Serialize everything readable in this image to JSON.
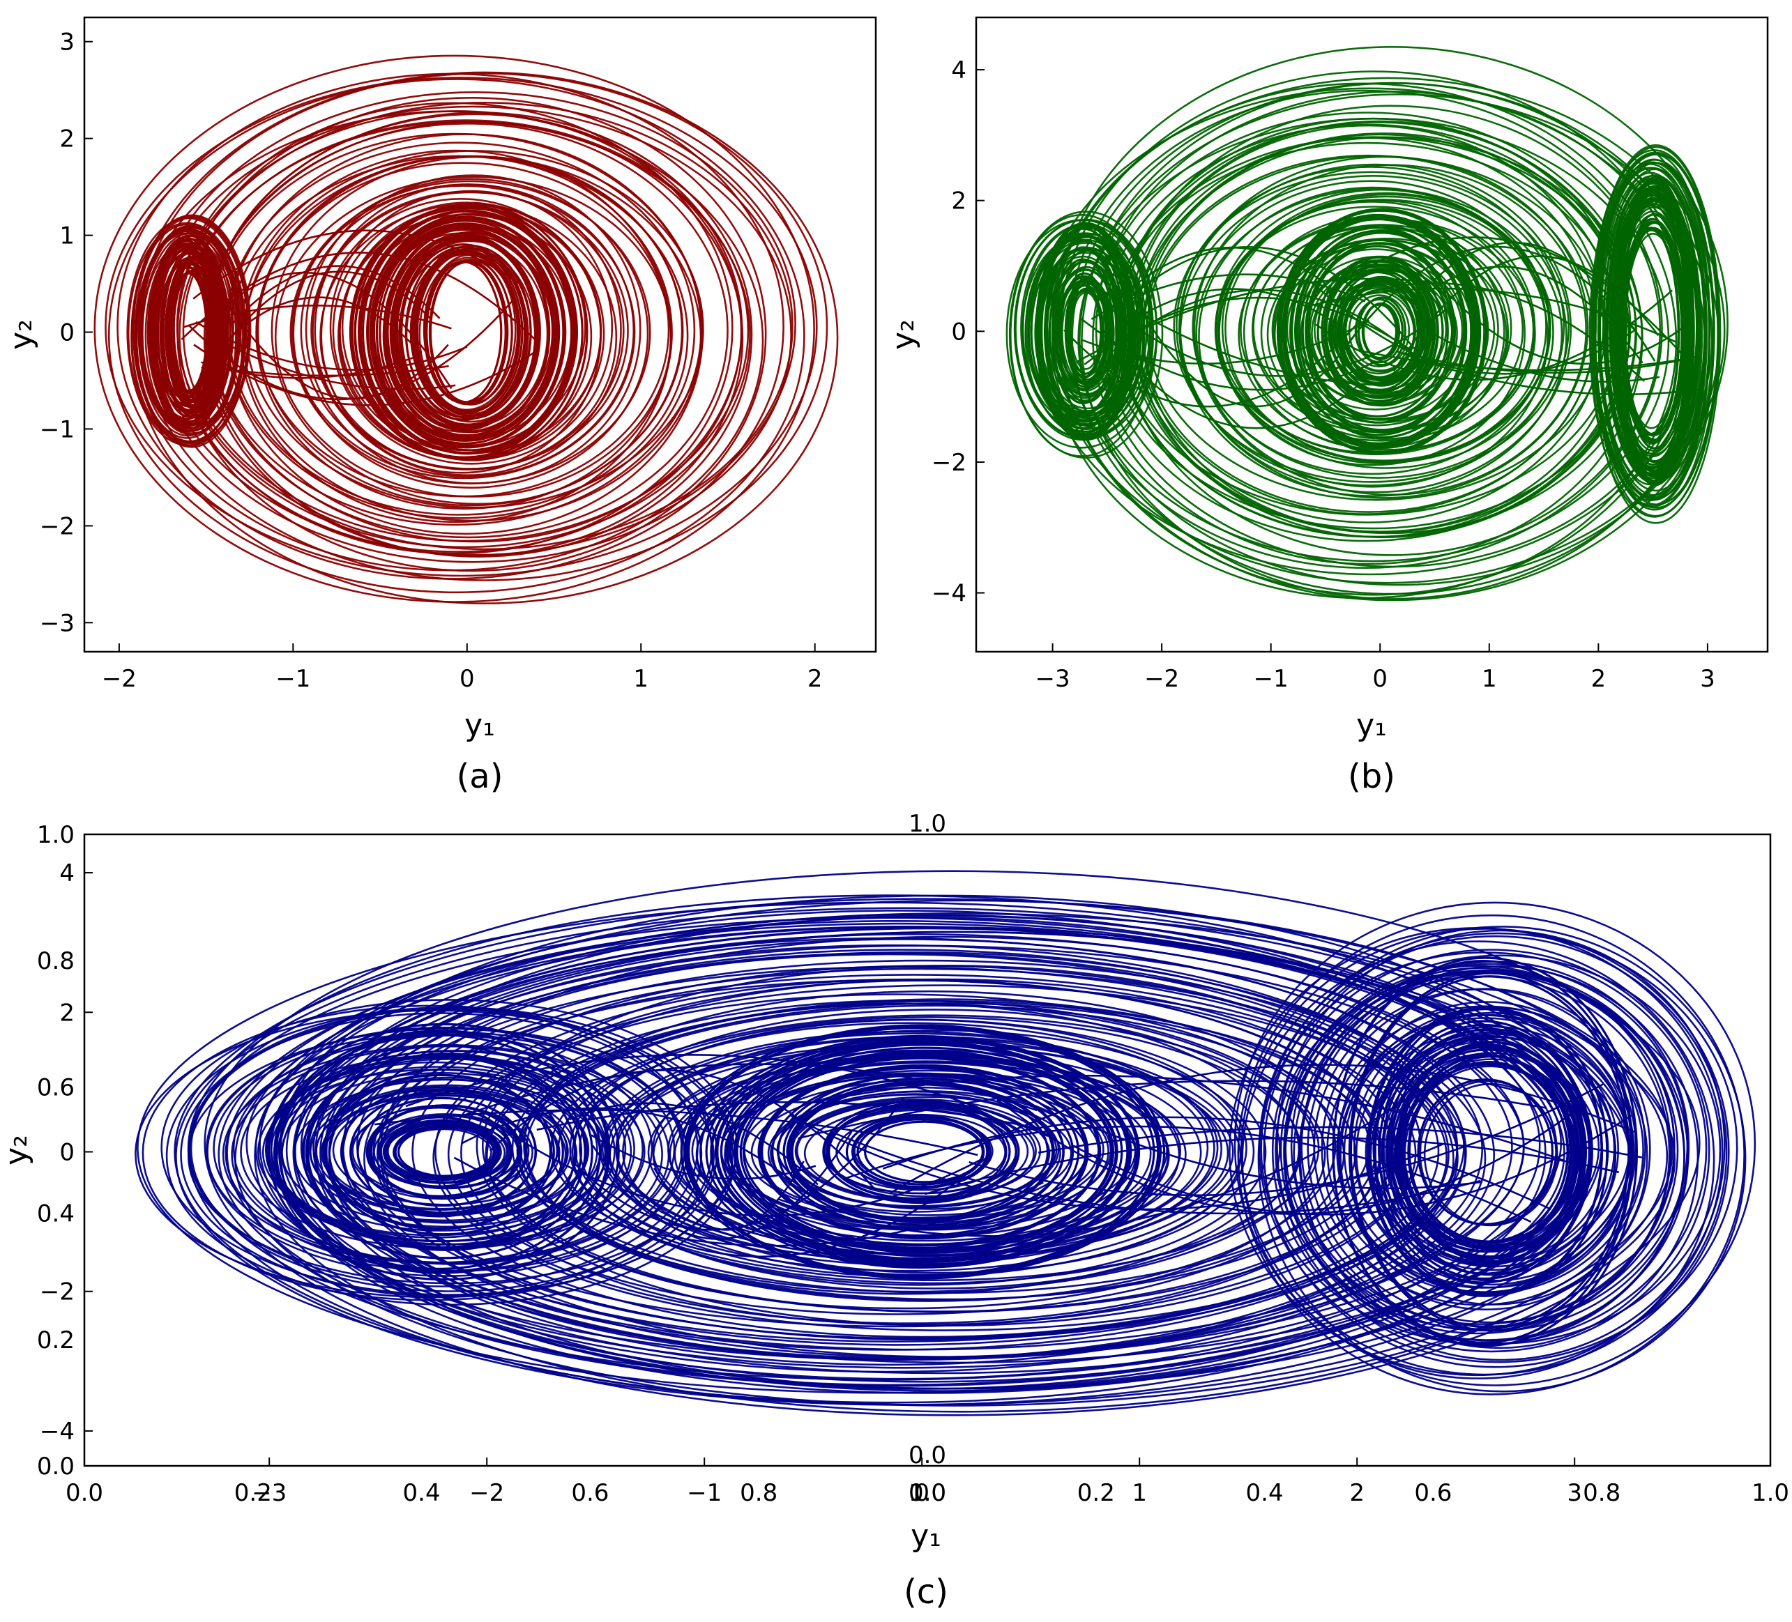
{
  "chart_data": [
    {
      "type": "line",
      "panel_label": "(a)",
      "xlabel": "y₁",
      "ylabel": "y₂",
      "xlim": [
        -2.2,
        2.35
      ],
      "ylim": [
        -3.3,
        3.25
      ],
      "xticks": [
        -2,
        -1,
        0,
        1,
        2
      ],
      "yticks": [
        -3,
        -2,
        -1,
        0,
        1,
        2,
        3
      ],
      "xtick_labels": [
        "−2",
        "−1",
        "0",
        "1",
        "2"
      ],
      "ytick_labels": [
        "−3",
        "−2",
        "−1",
        "0",
        "1",
        "2",
        "3"
      ],
      "series_color": "#8b0000",
      "attractor": {
        "lobes": [
          {
            "cx": 0.0,
            "cy": 0.0,
            "rx_min": 0.2,
            "rx_max": 2.1,
            "ry_min": 0.7,
            "ry_max": 2.95
          },
          {
            "cx": -1.6,
            "cy": 0.0,
            "rx_min": 0.1,
            "rx_max": 0.35,
            "ry_min": 0.6,
            "ry_max": 1.25
          }
        ]
      }
    },
    {
      "type": "line",
      "panel_label": "(b)",
      "xlabel": "y₁",
      "ylabel": "y₂",
      "xlim": [
        -3.7,
        3.55
      ],
      "ylim": [
        -4.9,
        4.8
      ],
      "xticks": [
        -3,
        -2,
        -1,
        0,
        1,
        2,
        3
      ],
      "yticks": [
        -4,
        -2,
        0,
        2,
        4
      ],
      "xtick_labels": [
        "−3",
        "−2",
        "−1",
        "0",
        "1",
        "2",
        "3"
      ],
      "ytick_labels": [
        "−4",
        "−2",
        "0",
        "2",
        "4"
      ],
      "series_color": "#006400",
      "attractor": {
        "lobes": [
          {
            "cx": 0.0,
            "cy": 0.0,
            "rx_min": 0.15,
            "rx_max": 3.1,
            "ry_min": 0.4,
            "ry_max": 4.3
          },
          {
            "cx": -2.7,
            "cy": 0.0,
            "rx_min": 0.1,
            "rx_max": 0.75,
            "ry_min": 0.5,
            "ry_max": 2.1
          },
          {
            "cx": 2.5,
            "cy": 0.0,
            "rx_min": 0.25,
            "rx_max": 0.6,
            "ry_min": 1.5,
            "ry_max": 3.0
          }
        ]
      }
    },
    {
      "type": "line",
      "panel_label": "(c)",
      "xlabel": "y₁",
      "ylabel": "y₂",
      "xlim": [
        -3.85,
        3.9
      ],
      "ylim": [
        -4.5,
        4.55
      ],
      "xticks": [
        -3,
        -2,
        -1,
        0,
        1,
        2,
        3
      ],
      "yticks": [
        -4,
        -2,
        0,
        2,
        4
      ],
      "xtick_labels": [
        "−3",
        "−2",
        "−1",
        "0",
        "1",
        "2",
        "3"
      ],
      "ytick_labels": [
        "−4",
        "−2",
        "0",
        "2",
        "4"
      ],
      "overlay_axes_ticks": [
        0.0,
        0.2,
        0.4,
        0.6,
        0.8,
        1.0
      ],
      "overlay_tick_labels": [
        "0.0",
        "0.2",
        "0.4",
        "0.6",
        "0.8",
        "1.0"
      ],
      "series_color": "#00008b",
      "attractor": {
        "lobes": [
          {
            "cx": 0.0,
            "cy": 0.0,
            "rx_min": 0.25,
            "rx_max": 3.5,
            "ry_min": 0.4,
            "ry_max": 4.1
          },
          {
            "cx": -2.2,
            "cy": 0.0,
            "rx_min": 0.2,
            "rx_max": 1.4,
            "ry_min": 0.3,
            "ry_max": 2.4
          },
          {
            "cx": 2.6,
            "cy": 0.0,
            "rx_min": 0.3,
            "rx_max": 1.2,
            "ry_min": 1.0,
            "ry_max": 3.6
          }
        ]
      }
    }
  ]
}
